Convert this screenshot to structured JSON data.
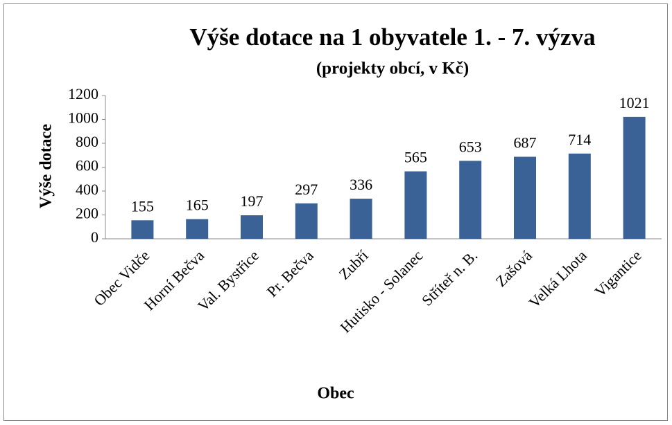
{
  "chart_data": {
    "type": "bar",
    "title": "Výše dotace na 1 obyvatele 1. - 7.  výzva",
    "subtitle": "(projekty obcí, v Kč)",
    "x_label": "Obec",
    "y_label": "Výše dotace",
    "categories": [
      "Obec Vidče",
      "Horní Bečva",
      "Val. Bystřice",
      "Pr. Bečva",
      "Zubří",
      "Hutisko - Solanec",
      "Stříteř n. B.",
      "Zašová",
      "Velká Lhota",
      "Vigantice"
    ],
    "values": [
      155,
      165,
      197,
      297,
      336,
      565,
      653,
      687,
      714,
      1021
    ],
    "color": "#3b6296",
    "ylim": [
      0,
      1200
    ],
    "yticks": [
      0,
      200,
      400,
      600,
      800,
      1000,
      1200
    ],
    "grid": false
  }
}
